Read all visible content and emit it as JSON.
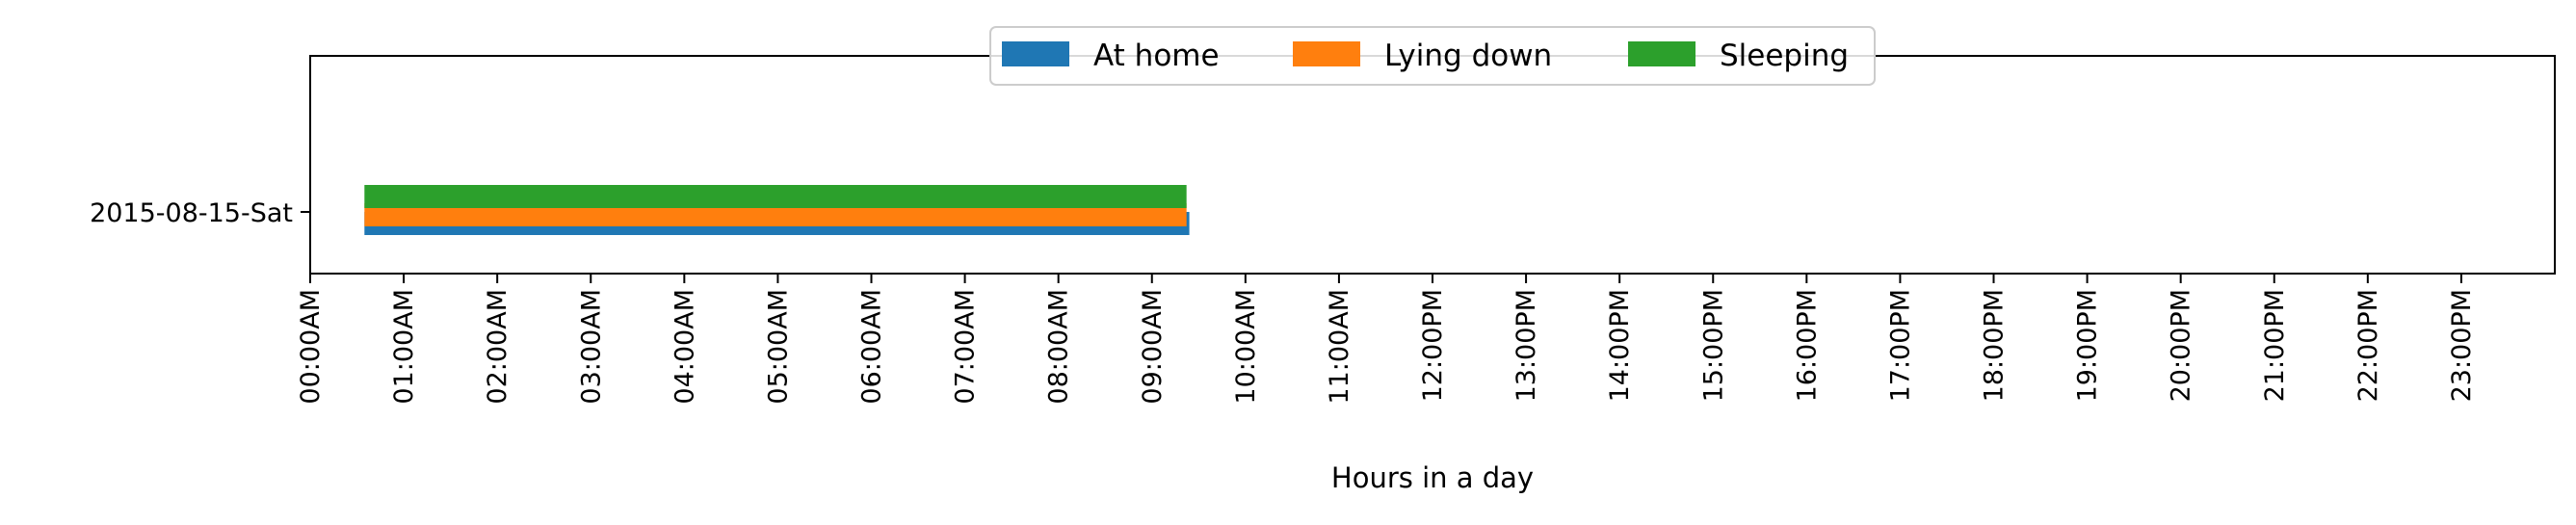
{
  "chart_data": {
    "type": "bar",
    "orientation": "horizontal-timeline",
    "title": "",
    "xlabel": "Hours in a day",
    "ylabel": "",
    "xlim": [
      0,
      24
    ],
    "x_ticks": [
      0,
      1,
      2,
      3,
      4,
      5,
      6,
      7,
      8,
      9,
      10,
      11,
      12,
      13,
      14,
      15,
      16,
      17,
      18,
      19,
      20,
      21,
      22,
      23
    ],
    "x_tick_labels": [
      "00:00AM",
      "01:00AM",
      "02:00AM",
      "03:00AM",
      "04:00AM",
      "05:00AM",
      "06:00AM",
      "07:00AM",
      "08:00AM",
      "09:00AM",
      "10:00AM",
      "11:00AM",
      "12:00PM",
      "13:00PM",
      "14:00PM",
      "15:00PM",
      "16:00PM",
      "17:00PM",
      "18:00PM",
      "19:00PM",
      "20:00PM",
      "21:00PM",
      "22:00PM",
      "23:00PM"
    ],
    "categories": [
      "2015-08-15-Sat"
    ],
    "grid": false,
    "legend_position": "top-center",
    "series": [
      {
        "name": "At home",
        "color": "#1f77b4",
        "intervals": [
          {
            "category": "2015-08-15-Sat",
            "start": 0.58,
            "end": 9.4
          }
        ]
      },
      {
        "name": "Lying down",
        "color": "#ff7f0e",
        "intervals": [
          {
            "category": "2015-08-15-Sat",
            "start": 0.58,
            "end": 9.37
          }
        ]
      },
      {
        "name": "Sleeping",
        "color": "#2ca02c",
        "intervals": [
          {
            "category": "2015-08-15-Sat",
            "start": 0.58,
            "end": 9.37
          }
        ]
      }
    ]
  }
}
